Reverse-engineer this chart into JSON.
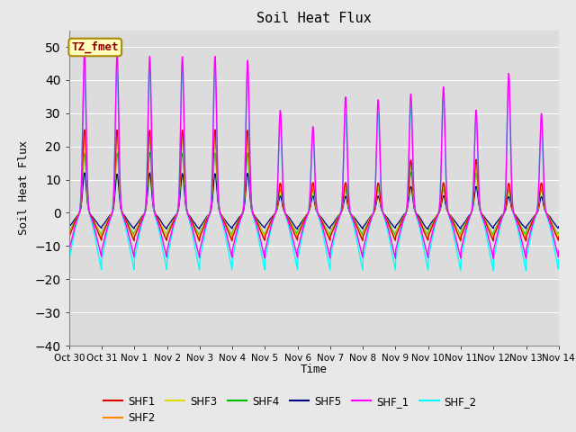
{
  "title": "Soil Heat Flux",
  "ylabel": "Soil Heat Flux",
  "xlabel": "Time",
  "annotation": "TZ_fmet",
  "ylim": [
    -40,
    55
  ],
  "xlim": [
    0,
    15
  ],
  "fig_facecolor": "#e8e8e8",
  "plot_bg_color": "#dcdcdc",
  "series_colors": {
    "SHF1": "#dd0000",
    "SHF2": "#ff8800",
    "SHF3": "#dddd00",
    "SHF4": "#00bb00",
    "SHF5": "#000088",
    "SHF_1": "#ff00ff",
    "SHF_2": "#00ffff"
  },
  "xtick_labels": [
    "Oct 30",
    "Oct 31",
    "Nov 1",
    "Nov 2",
    "Nov 3",
    "Nov 4",
    "Nov 5",
    "Nov 6",
    "Nov 7",
    "Nov 8",
    "Nov 9",
    "Nov 10",
    "Nov 11",
    "Nov 12",
    "Nov 13",
    "Nov 14"
  ],
  "xtick_positions": [
    0,
    1,
    2,
    3,
    4,
    5,
    6,
    7,
    8,
    9,
    10,
    11,
    12,
    13,
    14,
    15
  ],
  "ytick_positions": [
    -40,
    -30,
    -20,
    -10,
    0,
    10,
    20,
    30,
    40,
    50
  ],
  "grid_color": "#ffffff",
  "shf1_peaks": [
    25,
    25,
    25,
    25,
    25,
    25,
    9,
    9,
    9,
    9,
    16,
    9,
    16,
    9,
    9
  ],
  "shf2_peaks": [
    25,
    25,
    25,
    25,
    25,
    25,
    9,
    9,
    9,
    9,
    16,
    9,
    16,
    9,
    9
  ],
  "shf3_peaks": [
    22,
    22,
    22,
    22,
    22,
    22,
    8,
    8,
    8,
    8,
    14,
    8,
    14,
    8,
    8
  ],
  "shf4_peaks": [
    18,
    18,
    18,
    18,
    18,
    18,
    7,
    7,
    7,
    7,
    12,
    7,
    12,
    7,
    7
  ],
  "shf5_peaks": [
    12,
    12,
    12,
    12,
    12,
    12,
    5,
    5,
    5,
    5,
    8,
    5,
    8,
    5,
    5
  ],
  "shf_1_peaks": [
    49,
    48,
    47,
    47,
    47,
    46,
    31,
    26,
    35,
    34,
    36,
    38,
    31,
    42,
    30
  ],
  "shf_2_peaks": [
    44,
    43,
    44,
    44,
    43,
    43,
    28,
    24,
    30,
    30,
    32,
    35,
    28,
    40,
    27
  ],
  "shf1_trough": -12,
  "shf2_trough": -12,
  "shf3_trough": -10,
  "shf4_trough": -9,
  "shf5_trough": -6,
  "shf_1_trough": -23,
  "shf_2_trough": -27
}
